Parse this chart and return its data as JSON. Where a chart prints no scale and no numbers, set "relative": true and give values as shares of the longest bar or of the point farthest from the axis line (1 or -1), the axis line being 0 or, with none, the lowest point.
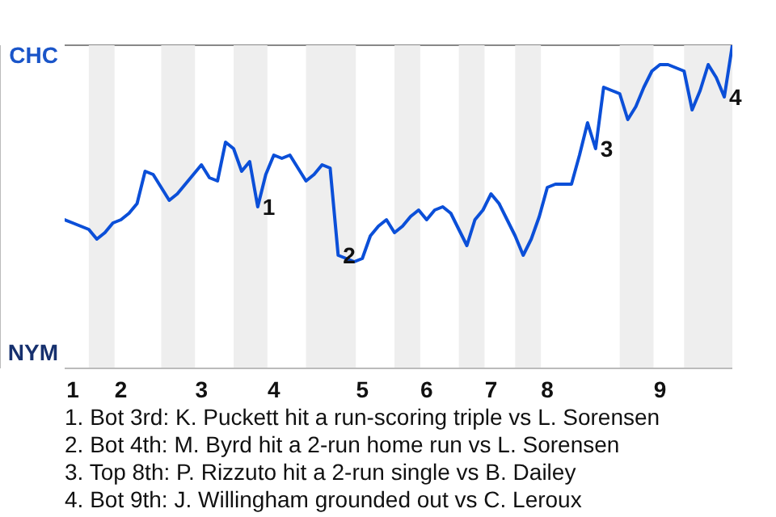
{
  "chart_data": {
    "type": "line",
    "relative": true,
    "categories": [
      null,
      "1",
      null,
      null,
      null,
      null,
      null,
      "2",
      null,
      null,
      null,
      null,
      null,
      null,
      null,
      null,
      null,
      "3",
      null,
      null,
      null,
      null,
      null,
      null,
      null,
      null,
      "4",
      null,
      null,
      null,
      null,
      null,
      null,
      null,
      null,
      null,
      null,
      "5",
      null,
      null,
      null,
      null,
      null,
      null,
      null,
      "6",
      null,
      null,
      null,
      null,
      null,
      null,
      null,
      "7",
      null,
      null,
      null,
      null,
      null,
      null,
      "8",
      null,
      null,
      null,
      null,
      null,
      null,
      null,
      null,
      null,
      null,
      null,
      null,
      null,
      "9",
      null,
      null,
      null,
      null,
      null,
      null,
      null,
      null,
      null
    ],
    "series": [
      {
        "color": "#0b4fd8",
        "values": [
          0.46,
          0.45,
          0.44,
          0.43,
          0.4,
          0.42,
          0.45,
          0.46,
          0.48,
          0.51,
          0.61,
          0.6,
          0.56,
          0.52,
          0.54,
          0.57,
          0.6,
          0.63,
          0.59,
          0.58,
          0.7,
          0.68,
          0.61,
          0.64,
          0.5,
          0.6,
          0.66,
          0.65,
          0.66,
          0.62,
          0.58,
          0.6,
          0.63,
          0.62,
          0.35,
          0.34,
          0.33,
          0.34,
          0.41,
          0.44,
          0.46,
          0.42,
          0.44,
          0.47,
          0.49,
          0.46,
          0.49,
          0.5,
          0.48,
          0.43,
          0.38,
          0.46,
          0.49,
          0.54,
          0.51,
          0.46,
          0.41,
          0.35,
          0.4,
          0.47,
          0.56,
          0.57,
          0.57,
          0.57,
          0.66,
          0.76,
          0.68,
          0.87,
          0.86,
          0.85,
          0.77,
          0.81,
          0.87,
          0.92,
          0.94,
          0.94,
          0.93,
          0.92,
          0.8,
          0.86,
          0.94,
          0.9,
          0.84,
          1.0
        ]
      }
    ],
    "annotations": [
      "1",
      "2",
      "3",
      "4",
      "CHC",
      "NYM",
      "1. Bot 3rd: K. Puckett hit a run-scoring triple vs L. Sorensen",
      "2. Bot 4th: M. Byrd hit a 2-run home run vs L. Sorensen",
      "3. Top 8th: P. Rizzuto hit a 2-run single vs B. Dailey",
      "4. Bot 9th: J. Willingham grounded out vs C. Leroux"
    ]
  }
}
